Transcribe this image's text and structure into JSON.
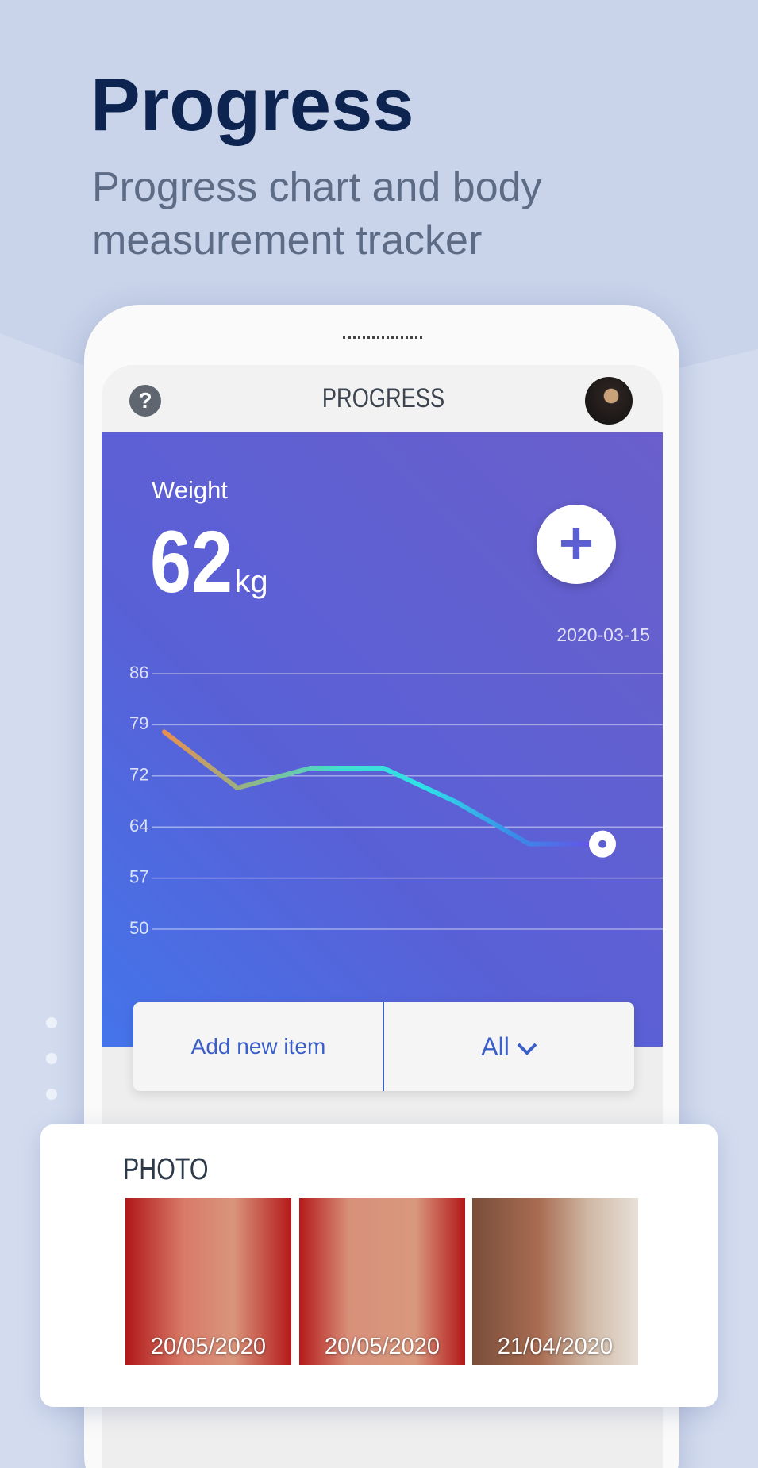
{
  "header": {
    "title": "Progress",
    "subtitle_lines": [
      "Progress chart and body",
      "measurement tracker"
    ]
  },
  "app_bar": {
    "title": "PROGRESS"
  },
  "weight": {
    "label": "Weight",
    "value": 62,
    "unit": "kg",
    "date": "2020-03-15"
  },
  "chart_data": {
    "type": "line",
    "categories": [
      null,
      null,
      null,
      null,
      null,
      null,
      null
    ],
    "values": [
      77.8,
      69.9,
      72.7,
      72.7,
      67.9,
      62,
      62
    ],
    "colors": [
      "#e8904e",
      "#8fb58a",
      "#3fe0d0",
      "#2ee0e8",
      "#3a8ce8",
      "#6a4be8"
    ],
    "ylim": [
      50,
      86
    ],
    "yticks": [
      86,
      {
        "value": 78.8,
        "label": "79"
      },
      {
        "value": 71.6,
        "label": "72"
      },
      {
        "value": 64.4,
        "label": "64"
      },
      {
        "value": 57.2,
        "label": "57"
      },
      50
    ],
    "grid": true
  },
  "actions": {
    "add": "Add new item",
    "filter": "All"
  },
  "photos": {
    "title": "PHOTO",
    "items": [
      {
        "date": "20/05/2020"
      },
      {
        "date": "20/05/2020"
      },
      {
        "date": "21/04/2020"
      }
    ]
  }
}
